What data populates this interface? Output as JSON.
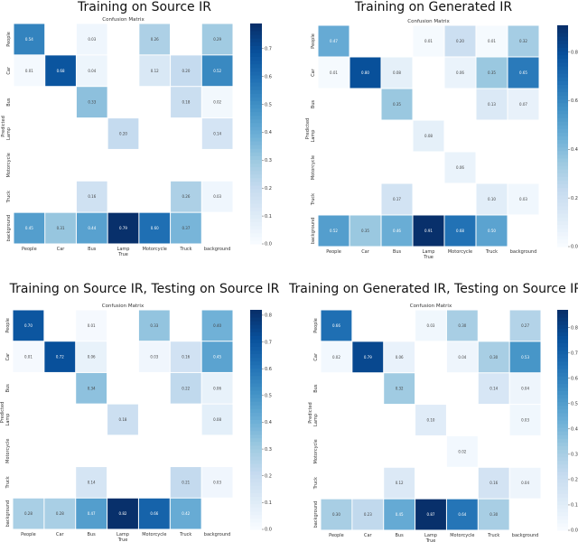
{
  "chart_data": [
    {
      "type": "heatmap",
      "title": "Training on Source IR",
      "inner_title": "Confusion Matrix",
      "xlabel": "True",
      "ylabel": "Predicted",
      "categories": [
        "People",
        "Car",
        "Bus",
        "Lamp",
        "Motorcycle",
        "Truck",
        "background"
      ],
      "vmax": 0.79,
      "colorbar_ticks": [
        0.0,
        0.1,
        0.2,
        0.3,
        0.4,
        0.5,
        0.6,
        0.7
      ],
      "values": [
        [
          0.54,
          null,
          0.03,
          null,
          0.26,
          null,
          0.29
        ],
        [
          0.01,
          0.68,
          0.04,
          null,
          0.12,
          0.2,
          0.52
        ],
        [
          null,
          null,
          0.33,
          null,
          null,
          0.18,
          0.02
        ],
        [
          null,
          null,
          null,
          0.2,
          null,
          null,
          0.14
        ],
        [
          null,
          null,
          null,
          null,
          null,
          null,
          null
        ],
        [
          null,
          null,
          0.16,
          null,
          null,
          0.26,
          0.03
        ],
        [
          0.45,
          0.31,
          0.44,
          0.79,
          0.6,
          0.37,
          null
        ]
      ]
    },
    {
      "type": "heatmap",
      "title": "Training on Generated IR",
      "inner_title": "Confusion Matrix",
      "xlabel": "True",
      "ylabel": "Predicted",
      "categories": [
        "People",
        "Car",
        "Bus",
        "Lamp",
        "Motorcycle",
        "Truck",
        "background"
      ],
      "vmax": 0.91,
      "colorbar_ticks": [
        0.0,
        0.2,
        0.4,
        0.6,
        0.8
      ],
      "values": [
        [
          0.47,
          null,
          null,
          0.01,
          0.2,
          0.01,
          0.32
        ],
        [
          0.01,
          0.8,
          0.08,
          null,
          0.06,
          0.35,
          0.65
        ],
        [
          null,
          null,
          0.35,
          null,
          null,
          0.13,
          0.07
        ],
        [
          null,
          null,
          null,
          0.08,
          null,
          null,
          null
        ],
        [
          null,
          null,
          null,
          null,
          0.06,
          null,
          null
        ],
        [
          null,
          null,
          0.17,
          null,
          null,
          0.1,
          0.03
        ],
        [
          0.52,
          0.35,
          0.46,
          0.91,
          0.68,
          0.5,
          null
        ]
      ]
    },
    {
      "type": "heatmap",
      "title": "Training on Source IR, Testing on Source IR",
      "inner_title": "Confusion Matrix",
      "xlabel": "True",
      "ylabel": "Predicted",
      "categories": [
        "People",
        "Car",
        "Bus",
        "Lamp",
        "Motorcycle",
        "Truck",
        "background"
      ],
      "vmax": 0.82,
      "colorbar_ticks": [
        0.0,
        0.1,
        0.2,
        0.3,
        0.4,
        0.5,
        0.6,
        0.7,
        0.8
      ],
      "values": [
        [
          0.7,
          null,
          0.01,
          null,
          0.33,
          null,
          0.4
        ],
        [
          0.01,
          0.72,
          0.06,
          null,
          0.03,
          0.16,
          0.45
        ],
        [
          null,
          null,
          0.34,
          null,
          null,
          0.22,
          0.06
        ],
        [
          null,
          null,
          null,
          0.18,
          null,
          null,
          0.08
        ],
        [
          null,
          null,
          null,
          null,
          null,
          null,
          null
        ],
        [
          null,
          null,
          0.14,
          null,
          null,
          0.21,
          0.03
        ],
        [
          0.28,
          0.28,
          0.47,
          0.82,
          0.66,
          0.42,
          null
        ]
      ]
    },
    {
      "type": "heatmap",
      "title": "Training on Generated IR, Testing on Source IR",
      "inner_title": "Confusion Matrix",
      "xlabel": "True",
      "ylabel": "Predicted",
      "categories": [
        "People",
        "Car",
        "Bus",
        "Lamp",
        "Motorcycle",
        "Truck",
        "background"
      ],
      "vmax": 0.87,
      "colorbar_ticks": [
        0.0,
        0.1,
        0.2,
        0.3,
        0.4,
        0.5,
        0.6,
        0.7,
        0.8
      ],
      "values": [
        [
          0.66,
          null,
          null,
          0.03,
          0.3,
          null,
          0.27
        ],
        [
          0.02,
          0.79,
          0.06,
          null,
          0.04,
          0.3,
          0.53
        ],
        [
          null,
          null,
          0.32,
          null,
          null,
          0.14,
          0.04
        ],
        [
          null,
          null,
          null,
          0.1,
          null,
          null,
          0.03
        ],
        [
          null,
          null,
          null,
          null,
          0.02,
          null,
          null
        ],
        [
          null,
          null,
          0.12,
          null,
          null,
          0.16,
          0.04
        ],
        [
          0.3,
          0.23,
          0.45,
          0.87,
          0.64,
          0.3,
          null
        ]
      ]
    }
  ]
}
